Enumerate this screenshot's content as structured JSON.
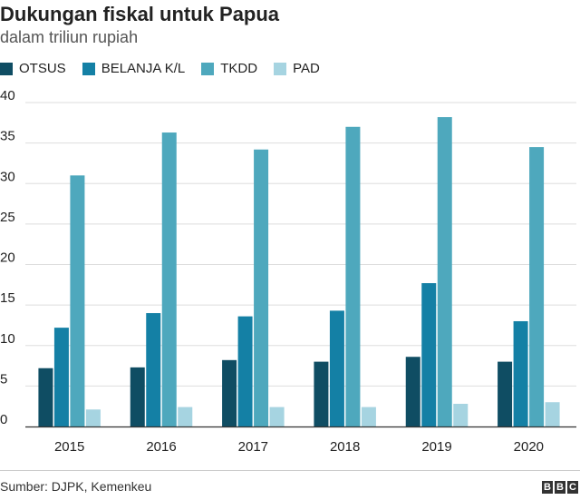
{
  "header": {
    "title": "Dukungan fiskal untuk Papua",
    "subtitle": "dalam triliun rupiah"
  },
  "footer": {
    "source": "Sumber: DJPK, Kemenkeu",
    "logo_letters": [
      "B",
      "B",
      "C"
    ]
  },
  "chart_data": {
    "type": "bar",
    "title": "Dukungan fiskal untuk Papua",
    "subtitle": "dalam triliun rupiah",
    "xlabel": "",
    "ylabel": "",
    "categories": [
      "2015",
      "2016",
      "2017",
      "2018",
      "2019",
      "2020"
    ],
    "ylim": [
      0,
      40
    ],
    "yticks": [
      0,
      5,
      10,
      15,
      20,
      25,
      30,
      35,
      40
    ],
    "grid": "horizontal",
    "legend_position": "top-left",
    "series": [
      {
        "name": "OTSUS",
        "color": "#0f4d63",
        "values": [
          7.2,
          7.3,
          8.2,
          8.0,
          8.6,
          8.0
        ]
      },
      {
        "name": "BELANJA K/L",
        "color": "#1480a5",
        "values": [
          12.2,
          14.0,
          13.6,
          14.3,
          17.7,
          13.0
        ]
      },
      {
        "name": "TKDD",
        "color": "#4ea8bd",
        "values": [
          31.0,
          36.3,
          34.2,
          37.0,
          38.2,
          34.5
        ]
      },
      {
        "name": "PAD",
        "color": "#a6d4e1",
        "values": [
          2.1,
          2.4,
          2.4,
          2.4,
          2.8,
          3.0
        ]
      }
    ]
  }
}
